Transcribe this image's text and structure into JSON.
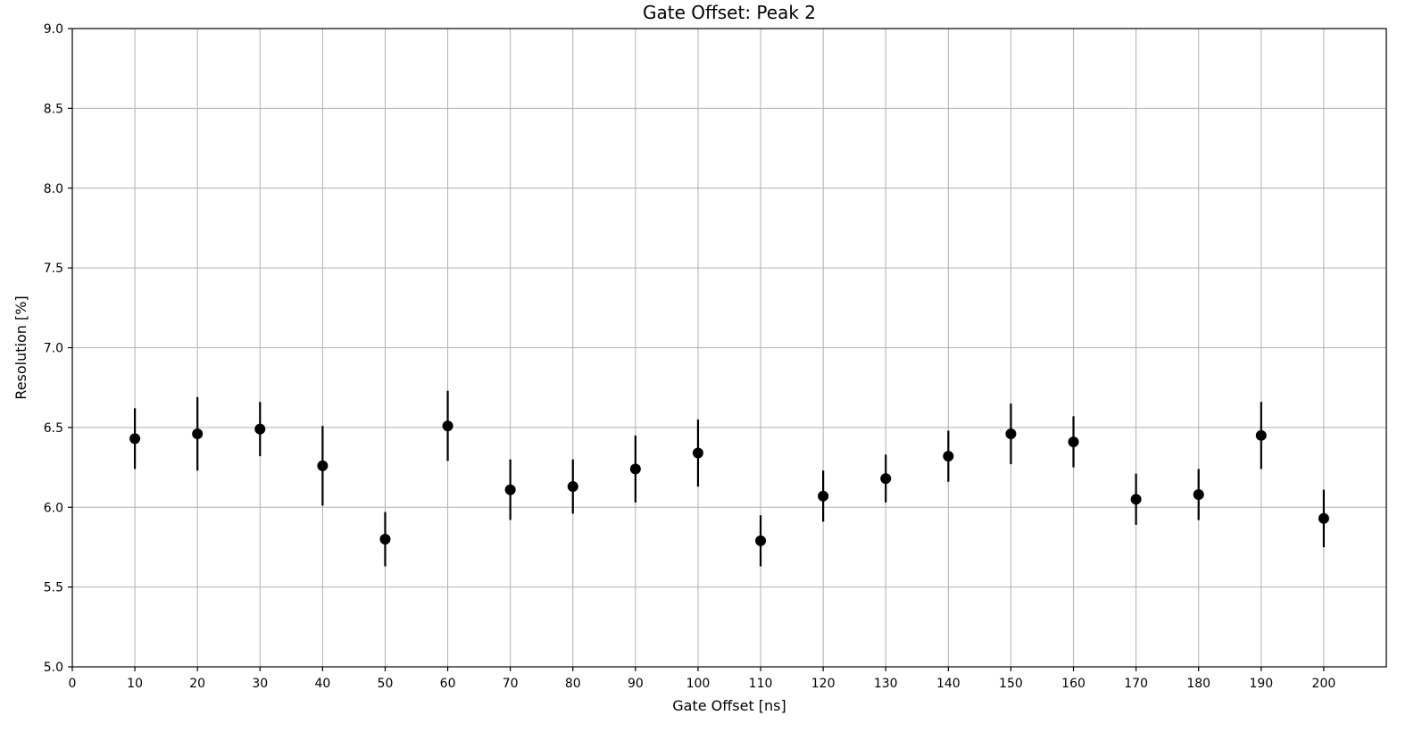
{
  "chart_data": {
    "type": "scatter",
    "title": "Gate Offset: Peak 2",
    "xlabel": "Gate Offset [ns]",
    "ylabel": "Resolution [%]",
    "xlim": [
      0,
      210
    ],
    "ylim": [
      5.0,
      9.0
    ],
    "xticks": [
      0,
      10,
      20,
      30,
      40,
      50,
      60,
      70,
      80,
      90,
      100,
      110,
      120,
      130,
      140,
      150,
      160,
      170,
      180,
      190,
      200
    ],
    "yticks": [
      "5.0",
      "5.5",
      "6.0",
      "6.5",
      "7.0",
      "7.5",
      "8.0",
      "8.5",
      "9.0"
    ],
    "grid": true,
    "marker_color": "#000000",
    "series": [
      {
        "x": [
          10,
          20,
          30,
          40,
          50,
          60,
          70,
          80,
          90,
          100,
          110,
          120,
          130,
          140,
          150,
          160,
          170,
          180,
          190,
          200
        ],
        "y": [
          6.43,
          6.46,
          6.49,
          6.26,
          5.8,
          6.51,
          6.11,
          6.13,
          6.24,
          6.34,
          5.79,
          6.07,
          6.18,
          6.32,
          6.46,
          6.41,
          6.05,
          6.08,
          6.45,
          5.93
        ],
        "yerr": [
          0.19,
          0.23,
          0.17,
          0.25,
          0.17,
          0.22,
          0.19,
          0.17,
          0.21,
          0.21,
          0.16,
          0.16,
          0.15,
          0.16,
          0.19,
          0.16,
          0.16,
          0.16,
          0.21,
          0.18
        ]
      }
    ]
  }
}
